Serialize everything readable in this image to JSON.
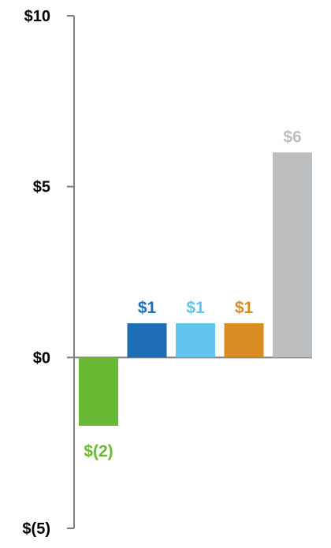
{
  "chart_data": {
    "type": "bar",
    "title": "",
    "xlabel": "",
    "ylabel": "",
    "categories": [
      "",
      "",
      "",
      "",
      ""
    ],
    "values": [
      -2,
      1,
      1,
      1,
      6
    ],
    "data_labels": [
      "$(2)",
      "$1",
      "$1",
      "$1",
      "$6"
    ],
    "colors": [
      "#6ab934",
      "#1e6db5",
      "#62c4ee",
      "#d98c22",
      "#bcbec0"
    ],
    "ylim": [
      -5,
      10
    ],
    "y_ticks": [
      {
        "value": 10,
        "label": "$10"
      },
      {
        "value": 5,
        "label": "$5"
      },
      {
        "value": 0,
        "label": "$0"
      },
      {
        "value": -5,
        "label": "$(5)"
      }
    ],
    "grid": false,
    "legend": "none"
  }
}
